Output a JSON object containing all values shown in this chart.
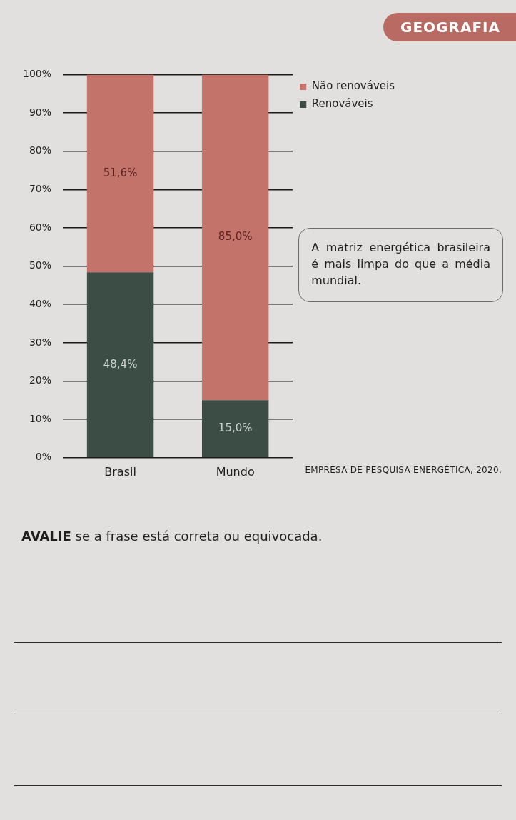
{
  "chart_data": {
    "type": "bar",
    "stacked": true,
    "categories": [
      "Brasil",
      "Mundo"
    ],
    "series": [
      {
        "name": "Renováveis",
        "color": "#3c4d46",
        "values": [
          48.4,
          15.0
        ],
        "value_labels": [
          "48,4%",
          "15,0%"
        ]
      },
      {
        "name": "Não renováveis",
        "color": "#c4736b",
        "values": [
          51.6,
          85.0
        ],
        "value_labels": [
          "51,6%",
          "85,0%"
        ]
      }
    ],
    "ylim": [
      0,
      100
    ],
    "yticks": [
      {
        "value": 0,
        "label": "0%"
      },
      {
        "value": 10,
        "label": "10%"
      },
      {
        "value": 20,
        "label": "20%"
      },
      {
        "value": 30,
        "label": "30%"
      },
      {
        "value": 40,
        "label": "40%"
      },
      {
        "value": 50,
        "label": "50%"
      },
      {
        "value": 60,
        "label": "60%"
      },
      {
        "value": 70,
        "label": "70%"
      },
      {
        "value": 80,
        "label": "80%"
      },
      {
        "value": 90,
        "label": "90%"
      },
      {
        "value": 100,
        "label": "100%"
      }
    ],
    "grid": "y",
    "legend": "right",
    "annotations": [
      "GEOGRAFIA",
      "A matriz energética brasileira é mais limpa do que a média mundial.",
      "EMPRESA DE PESQUISA ENERGÉTICA, 2020.",
      "AVALIE se a frase está correta ou equivocada."
    ]
  }
}
